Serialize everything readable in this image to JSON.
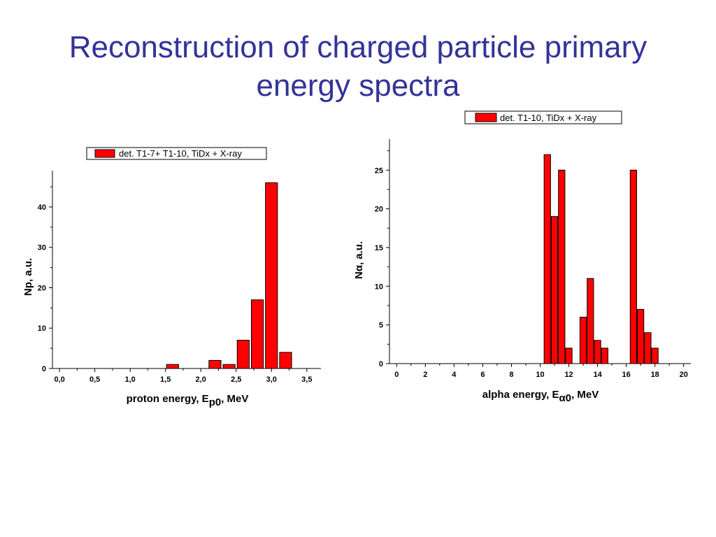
{
  "slide": {
    "title_line1": "Reconstruction of charged particle primary",
    "title_line2": "energy spectra"
  },
  "colors": {
    "title": "#333399",
    "bar_fill": "#ff0000",
    "bar_stroke": "#000000"
  },
  "chart_data": [
    {
      "type": "bar",
      "legend": "det. T1-7+ T1-10, TiDx + X-ray",
      "legend_placement": "top",
      "xlabel": {
        "prefix": "proton energy, E",
        "subscript": "p0",
        "suffix": ", MeV"
      },
      "ylabel": "Np, a.u.",
      "xlim": [
        -0.1,
        3.7
      ],
      "ylim": [
        0,
        49
      ],
      "xticks": [
        0.0,
        0.5,
        1.0,
        1.5,
        2.0,
        2.5,
        3.0,
        3.5
      ],
      "xtick_labels": [
        "0,0",
        "0,5",
        "1,0",
        "1,5",
        "2,0",
        "2,5",
        "3,0",
        "3,5"
      ],
      "yticks": [
        0,
        10,
        20,
        30,
        40
      ],
      "ytick_labels": [
        "0",
        "10",
        "20",
        "30",
        "40"
      ],
      "bar_width": 0.17,
      "x": [
        1.6,
        2.2,
        2.4,
        2.6,
        2.8,
        3.0,
        3.2
      ],
      "values": [
        1,
        2,
        1,
        7,
        17,
        46,
        4
      ],
      "grid": false
    },
    {
      "type": "bar",
      "legend": "det. T1-10, TiDx + X-ray",
      "legend_placement": "top",
      "xlabel": {
        "prefix": "alpha energy, E",
        "subscript": "α0",
        "suffix": ", MeV"
      },
      "ylabel": "Nα, a.u.",
      "xlim": [
        -0.5,
        20.5
      ],
      "ylim": [
        0,
        29
      ],
      "xticks": [
        0,
        2,
        4,
        6,
        8,
        10,
        12,
        14,
        16,
        18,
        20
      ],
      "xtick_labels": [
        "0",
        "2",
        "4",
        "6",
        "8",
        "10",
        "12",
        "14",
        "16",
        "18",
        "20"
      ],
      "yticks": [
        0,
        5,
        10,
        15,
        20,
        25
      ],
      "ytick_labels": [
        "0",
        "5",
        "10",
        "15",
        "20",
        "25"
      ],
      "bar_width": 0.45,
      "x": [
        10.5,
        11.0,
        11.5,
        12.0,
        13.0,
        13.5,
        14.0,
        14.5,
        16.5,
        17.0,
        17.5,
        18.0
      ],
      "values": [
        27,
        19,
        25,
        2,
        6,
        11,
        3,
        2,
        25,
        7,
        4,
        2
      ],
      "grid": false
    }
  ]
}
